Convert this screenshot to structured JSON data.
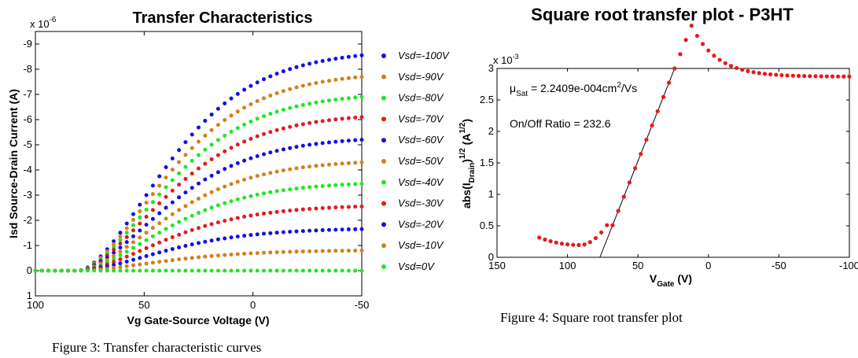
{
  "chart_data": [
    {
      "type": "scatter",
      "title": "Transfer Characteristics",
      "xlabel": "Vg Gate-Source Voltage (V)",
      "ylabel": "Isd  Source-Drain Current (A)",
      "y_multiplier": "x 10",
      "y_exponent": "-6",
      "xlim": [
        100,
        -50
      ],
      "ylim": [
        1,
        -9.5
      ],
      "x_ticks": [
        "100",
        "50",
        "0",
        "-50"
      ],
      "y_ticks": [
        "1",
        "0",
        "-1",
        "-2",
        "-3",
        "-4",
        "-5",
        "-6",
        "-7",
        "-8",
        "-9"
      ],
      "grid": false,
      "legend_position": "right",
      "vg_start": 100,
      "vg_step": -3,
      "vg_count": 51,
      "series": [
        {
          "name": "Vsd=-100V",
          "color": "#1010e6",
          "max": -8.55
        },
        {
          "name": "Vsd=-90V",
          "color": "#d4801a",
          "max": -7.7
        },
        {
          "name": "Vsd=-80V",
          "color": "#22e622",
          "max": -6.9
        },
        {
          "name": "Vsd=-70V",
          "color": "#e61a1a",
          "max": -6.1
        },
        {
          "name": "Vsd=-60V",
          "color": "#1010e6",
          "max": -5.2
        },
        {
          "name": "Vsd=-50V",
          "color": "#d4801a",
          "max": -4.3
        },
        {
          "name": "Vsd=-40V",
          "color": "#22e622",
          "max": -3.45
        },
        {
          "name": "Vsd=-30V",
          "color": "#e61a1a",
          "max": -2.55
        },
        {
          "name": "Vsd=-20V",
          "color": "#1010e6",
          "max": -1.65
        },
        {
          "name": "Vsd=-10V",
          "color": "#d4801a",
          "max": -0.8
        },
        {
          "name": "Vsd=0V",
          "color": "#22e622",
          "max": 0
        }
      ]
    },
    {
      "type": "scatter",
      "title": "Square root transfer plot - P3HT",
      "xlabel": "V",
      "xlabel_sub": "Gate",
      "xlabel_unit": " (V)",
      "ylabel_parts": [
        "abs(I",
        "Drain",
        ")",
        "1/2",
        " (A",
        "1/2",
        ")"
      ],
      "y_multiplier": "x 10",
      "y_exponent": "-3",
      "xlim": [
        150,
        -100
      ],
      "ylim": [
        0,
        3
      ],
      "x_ticks": [
        "150",
        "100",
        "50",
        "0",
        "-50",
        "-100"
      ],
      "y_ticks": [
        "0",
        "0.5",
        "1",
        "1.5",
        "2",
        "2.5",
        "3"
      ],
      "grid": false,
      "point_color": "#e61a1a",
      "vg_start": 120,
      "vg_step": -4,
      "vg_count": 56,
      "fit_line": {
        "x": [
          77,
          24
        ],
        "y": [
          0,
          3
        ]
      },
      "annotations": {
        "mu_symbol": "μ",
        "mu_sub": "Sat",
        "mu_text": " = 2.2409e-004cm",
        "mu_sup": "2",
        "mu_tail": "/Vs",
        "onoff": "On/Off Ratio = 232.6"
      }
    }
  ],
  "captions": {
    "figure3": "Figure 3: Transfer characteristic curves",
    "figure4": "Figure 4: Square root transfer plot"
  }
}
